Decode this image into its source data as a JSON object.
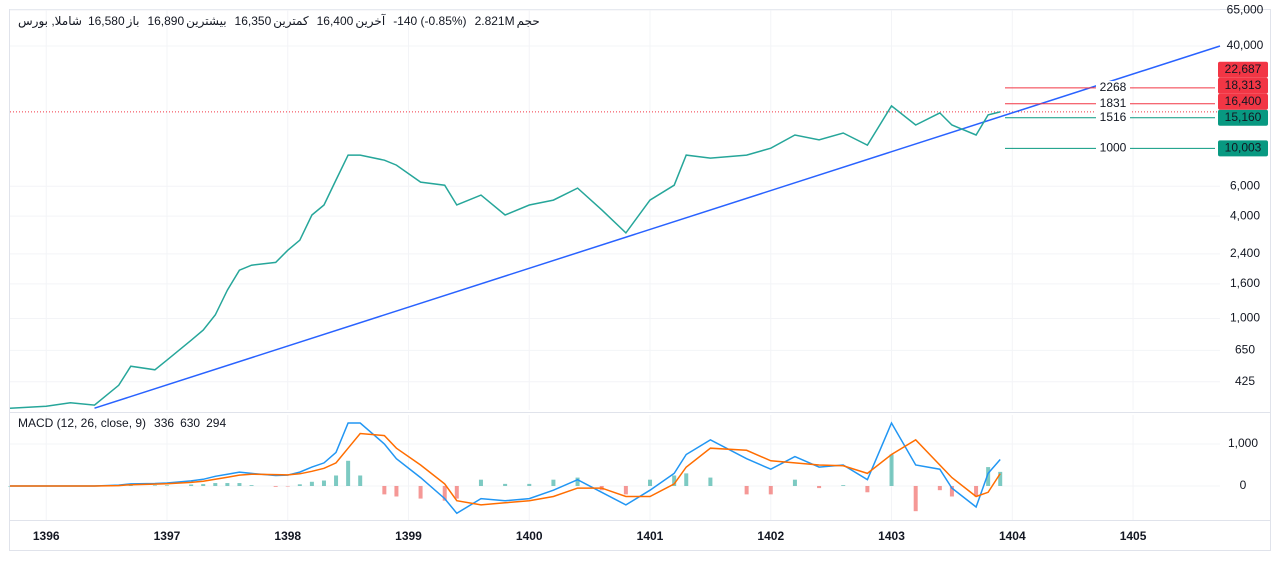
{
  "header": {
    "symbol": "شاملا, بورس",
    "items": [
      {
        "label": "باز",
        "value": "16,580"
      },
      {
        "label": "بیشترین",
        "value": "16,890"
      },
      {
        "label": "کمترین",
        "value": "16,350"
      },
      {
        "label": "آخرین",
        "value": "16,400"
      },
      {
        "value": "-140 (-0.85%)"
      },
      {
        "label": "حجم",
        "value": "2.821M"
      }
    ]
  },
  "chart_data": [
    {
      "type": "line",
      "log_scale": true,
      "grid": true,
      "color": "#26a69a",
      "x": [
        1395.7,
        1396.0,
        1396.2,
        1396.4,
        1396.6,
        1396.7,
        1396.9,
        1397.0,
        1397.2,
        1397.3,
        1397.4,
        1397.5,
        1397.6,
        1397.7,
        1397.9,
        1398.0,
        1398.1,
        1398.2,
        1398.3,
        1398.4,
        1398.5,
        1398.6,
        1398.8,
        1398.9,
        1399.1,
        1399.3,
        1399.4,
        1399.6,
        1399.8,
        1400.0,
        1400.2,
        1400.4,
        1400.6,
        1400.8,
        1401.0,
        1401.2,
        1401.3,
        1401.5,
        1401.8,
        1402.0,
        1402.2,
        1402.4,
        1402.6,
        1402.8,
        1403.0,
        1403.2,
        1403.4,
        1403.5,
        1403.7,
        1403.8,
        1403.9
      ],
      "values": [
        297,
        305,
        320,
        310,
        405,
        525,
        500,
        570,
        745,
        855,
        1050,
        1470,
        1925,
        2060,
        2140,
        2520,
        2890,
        4060,
        4650,
        6520,
        9140,
        9140,
        8530,
        7980,
        6340,
        6080,
        4650,
        5320,
        4060,
        4650,
        4970,
        5850,
        4360,
        3190,
        4970,
        6080,
        9140,
        8780,
        9140,
        10030,
        12000,
        11220,
        12330,
        10450,
        17800,
        13740,
        16190,
        13740,
        12000,
        15750,
        16400
      ],
      "xlim": [
        1395.7,
        1405.72
      ],
      "xticks": [
        1396,
        1397,
        1398,
        1399,
        1400,
        1401,
        1402,
        1403,
        1404,
        1405
      ],
      "ylim": [
        290,
        74600
      ],
      "yticks": [
        425,
        650,
        {
          "value": 1000,
          "label": "1,000"
        },
        {
          "value": 1600,
          "label": "1,600"
        },
        {
          "value": 2400,
          "label": "2,400"
        },
        {
          "value": 4000,
          "label": "4,000"
        },
        {
          "value": 6000,
          "label": "6,000"
        },
        {
          "value": 40000,
          "label": "40,000"
        },
        {
          "value": 65000,
          "label": "65,000"
        }
      ],
      "trendline": {
        "color": "#2962ff",
        "x": [
          1396.4,
          1405.72
        ],
        "values": [
          297,
          40000
        ]
      },
      "last_price": {
        "value": 16400,
        "label": "16,400",
        "color": "#f23645"
      },
      "levels": [
        {
          "name": "2268",
          "value": 22687,
          "label": "22,687",
          "color": "#f23645"
        },
        {
          "name": "1831",
          "value": 18313,
          "label": "18,313",
          "color": "#f23645"
        },
        {
          "name": "1516",
          "value": 15160,
          "label": "15,160",
          "color": "#089981"
        },
        {
          "name": "1000",
          "value": 10003,
          "label": "10,003",
          "color": "#089981"
        }
      ]
    },
    {
      "type": "macd",
      "title": "MACD (12, 26, close, 9)",
      "ylim": [
        -1048,
        1690
      ],
      "yticks": [
        {
          "value": 1000,
          "label": "1,000"
        },
        0
      ],
      "histogram": {
        "color": "#80cbc4",
        "color_up": "#26a69a",
        "color_down": "#ef5350",
        "values": [
          0,
          0,
          0,
          0,
          10,
          20,
          15,
          15,
          35,
          45,
          70,
          70,
          70,
          20,
          -20,
          -5,
          40,
          100,
          130,
          250,
          600,
          250,
          -200,
          -250,
          -300,
          -350,
          -300,
          150,
          50,
          50,
          150,
          200,
          -100,
          -200,
          150,
          250,
          300,
          200,
          -200,
          -200,
          150,
          -50,
          20,
          -150,
          750,
          -600,
          -100,
          -250,
          -250,
          450,
          336
        ]
      },
      "series": [
        {
          "color": "#2196f3",
          "values": [
            0,
            0,
            0,
            0,
            20,
            50,
            60,
            70,
            120,
            160,
            230,
            280,
            330,
            300,
            250,
            260,
            330,
            450,
            550,
            800,
            1500,
            1500,
            1000,
            650,
            200,
            -300,
            -650,
            -300,
            -350,
            -300,
            -100,
            150,
            -150,
            -450,
            -100,
            300,
            750,
            1100,
            650,
            400,
            700,
            450,
            500,
            150,
            1500,
            500,
            400,
            -50,
            -500,
            300,
            630
          ]
        },
        {
          "color": "#ff6d00",
          "values": [
            0,
            0,
            0,
            0,
            10,
            30,
            45,
            55,
            85,
            115,
            160,
            210,
            260,
            280,
            270,
            265,
            290,
            350,
            420,
            550,
            900,
            1250,
            1200,
            900,
            500,
            50,
            -350,
            -450,
            -400,
            -350,
            -250,
            -50,
            -50,
            -250,
            -250,
            50,
            450,
            900,
            850,
            600,
            550,
            500,
            480,
            300,
            750,
            1100,
            500,
            200,
            -250,
            -150,
            294
          ]
        }
      ]
    }
  ]
}
